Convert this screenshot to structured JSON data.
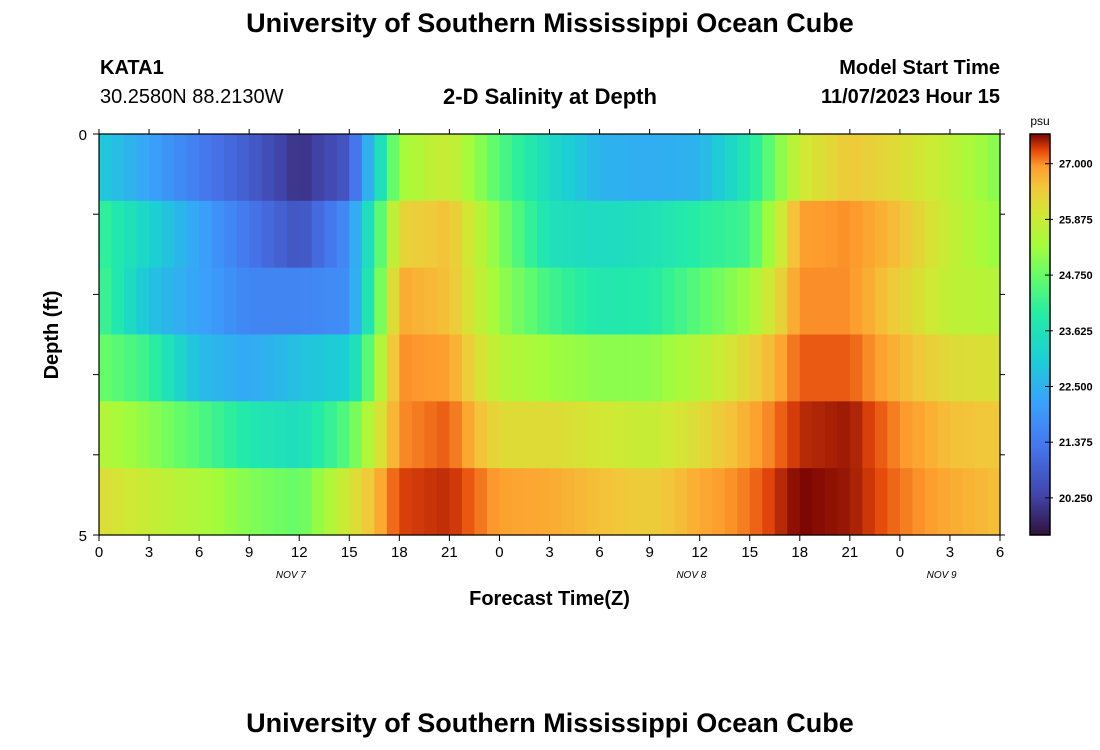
{
  "header": {
    "title": "University of Southern Mississippi Ocean Cube",
    "station": "KATA1",
    "coordinates": "30.2580N  88.2130W",
    "plot_title": "2-D Salinity at Depth",
    "model_start_label": "Model Start Time",
    "model_start_value": "11/07/2023 Hour 15"
  },
  "footer": {
    "title": "University of Southern Mississippi Ocean Cube"
  },
  "colors": {
    "low": "#2c0f3e",
    "mid": "#3ed6b8",
    "high": "#7a0403"
  },
  "chart_data": {
    "type": "heatmap",
    "title": "2-D Salinity at Depth",
    "xlabel": "Forecast Time(Z)",
    "ylabel": "Depth (ft)",
    "units": "psu",
    "x_hours": [
      0,
      3,
      6,
      9,
      12,
      15,
      18,
      21,
      24,
      27,
      30,
      33,
      36,
      39,
      42,
      45,
      48,
      51,
      54
    ],
    "x_tick_labels": [
      "0",
      "3",
      "6",
      "9",
      "12",
      "15",
      "18",
      "21",
      "0",
      "3",
      "6",
      "9",
      "12",
      "15",
      "18",
      "21",
      "0",
      "3",
      "6"
    ],
    "day_labels": [
      {
        "label": "NOV 7",
        "hour": 11.5
      },
      {
        "label": "NOV 8",
        "hour": 35.5
      },
      {
        "label": "NOV 9",
        "hour": 50.5
      }
    ],
    "xlim": [
      0,
      54
    ],
    "y_tick_labels": [
      "0",
      "5"
    ],
    "ylim": [
      0,
      5
    ],
    "depth_layers": [
      0,
      1,
      2,
      3,
      4,
      5
    ],
    "colorbar": {
      "label": "psu",
      "range": [
        19.5,
        27.6
      ],
      "tick_values": [
        27.0,
        25.875,
        24.75,
        23.625,
        22.5,
        21.375,
        20.25
      ],
      "tick_labels": [
        "27.000",
        "25.875",
        "24.750",
        "23.625",
        "22.500",
        "21.375",
        "20.250"
      ]
    },
    "values": [
      [
        23.0,
        22.2,
        21.4,
        20.8,
        20.0,
        20.7,
        25.3,
        25.9,
        24.5,
        23.4,
        22.5,
        22.4,
        22.5,
        23.8,
        25.9,
        26.5,
        26.2,
        25.7,
        25.0
      ],
      [
        24.2,
        23.2,
        22.2,
        21.3,
        20.6,
        21.8,
        26.3,
        26.6,
        25.0,
        23.6,
        23.4,
        23.6,
        24.0,
        24.3,
        26.9,
        27.0,
        26.6,
        25.8,
        25.2
      ],
      [
        24.4,
        22.8,
        22.2,
        21.6,
        21.6,
        21.8,
        26.8,
        26.6,
        25.2,
        24.3,
        23.8,
        23.9,
        24.6,
        25.3,
        27.0,
        27.0,
        26.4,
        25.7,
        25.6
      ],
      [
        24.8,
        24.2,
        22.7,
        22.3,
        22.8,
        23.1,
        27.0,
        26.9,
        25.6,
        25.3,
        25.1,
        25.1,
        25.6,
        26.3,
        27.2,
        27.2,
        26.7,
        26.2,
        26.1
      ],
      [
        25.6,
        25.1,
        24.5,
        23.8,
        23.5,
        24.6,
        27.0,
        27.2,
        26.2,
        26.2,
        26.0,
        25.8,
        26.2,
        26.8,
        27.4,
        27.5,
        27.0,
        26.6,
        26.5
      ],
      [
        26.2,
        25.8,
        25.5,
        25.0,
        24.7,
        26.0,
        27.3,
        27.4,
        26.9,
        26.8,
        26.6,
        26.4,
        26.8,
        27.1,
        27.6,
        27.5,
        27.1,
        26.8,
        26.6
      ]
    ]
  }
}
